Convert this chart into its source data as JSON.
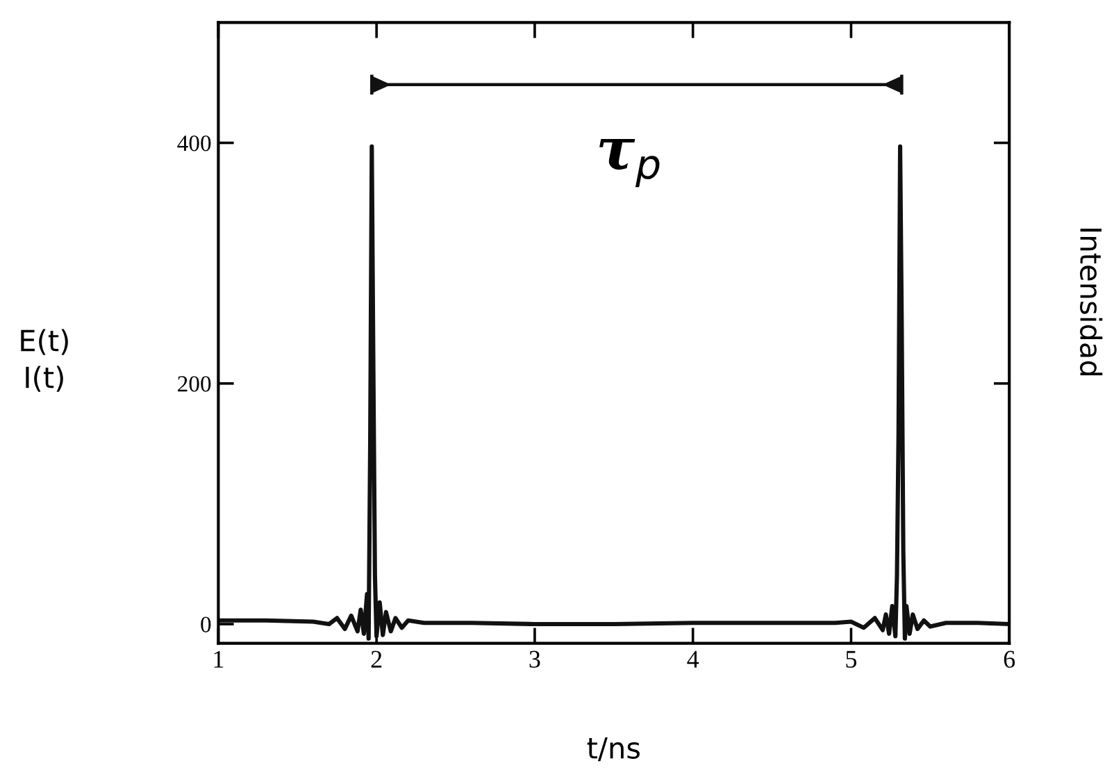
{
  "chart_data": {
    "type": "line",
    "xlabel": "t/ns",
    "ylabel": "E(t)\nI(t)",
    "y2label": "Intensidad",
    "xlim": [
      1,
      6
    ],
    "ylim": [
      -16,
      500
    ],
    "xticks": [
      1,
      2,
      3,
      4,
      5,
      6
    ],
    "yticks": [
      0,
      200,
      400
    ],
    "grid": false,
    "legend": false,
    "marker": "none",
    "line_style": "solid",
    "annotations": [
      "τ$_{p}$"
    ],
    "series": [
      {
        "color": "#111111",
        "x": [
          1.0,
          1.3,
          1.6,
          1.7,
          1.75,
          1.8,
          1.84,
          1.88,
          1.9,
          1.92,
          1.94,
          1.95,
          1.96,
          1.97,
          1.98,
          1.99,
          2.0,
          2.02,
          2.04,
          2.06,
          2.09,
          2.12,
          2.16,
          2.2,
          2.3,
          2.6,
          3.0,
          3.5,
          4.0,
          4.5,
          4.9,
          5.0,
          5.08,
          5.15,
          5.2,
          5.22,
          5.24,
          5.26,
          5.28,
          5.29,
          5.3,
          5.31,
          5.32,
          5.33,
          5.34,
          5.35,
          5.37,
          5.39,
          5.42,
          5.46,
          5.5,
          5.6,
          5.8,
          6.0
        ],
        "values": [
          3,
          3,
          2,
          0,
          5,
          -4,
          7,
          -6,
          12,
          -8,
          25,
          -12,
          150,
          397,
          210,
          40,
          -10,
          18,
          -9,
          10,
          -6,
          5,
          -3,
          3,
          1,
          1,
          0,
          0,
          1,
          1,
          1,
          2,
          -3,
          5,
          -5,
          8,
          -8,
          15,
          -10,
          40,
          160,
          397,
          250,
          60,
          -12,
          15,
          -8,
          8,
          -4,
          3,
          -2,
          1,
          1,
          0
        ]
      }
    ]
  }
}
